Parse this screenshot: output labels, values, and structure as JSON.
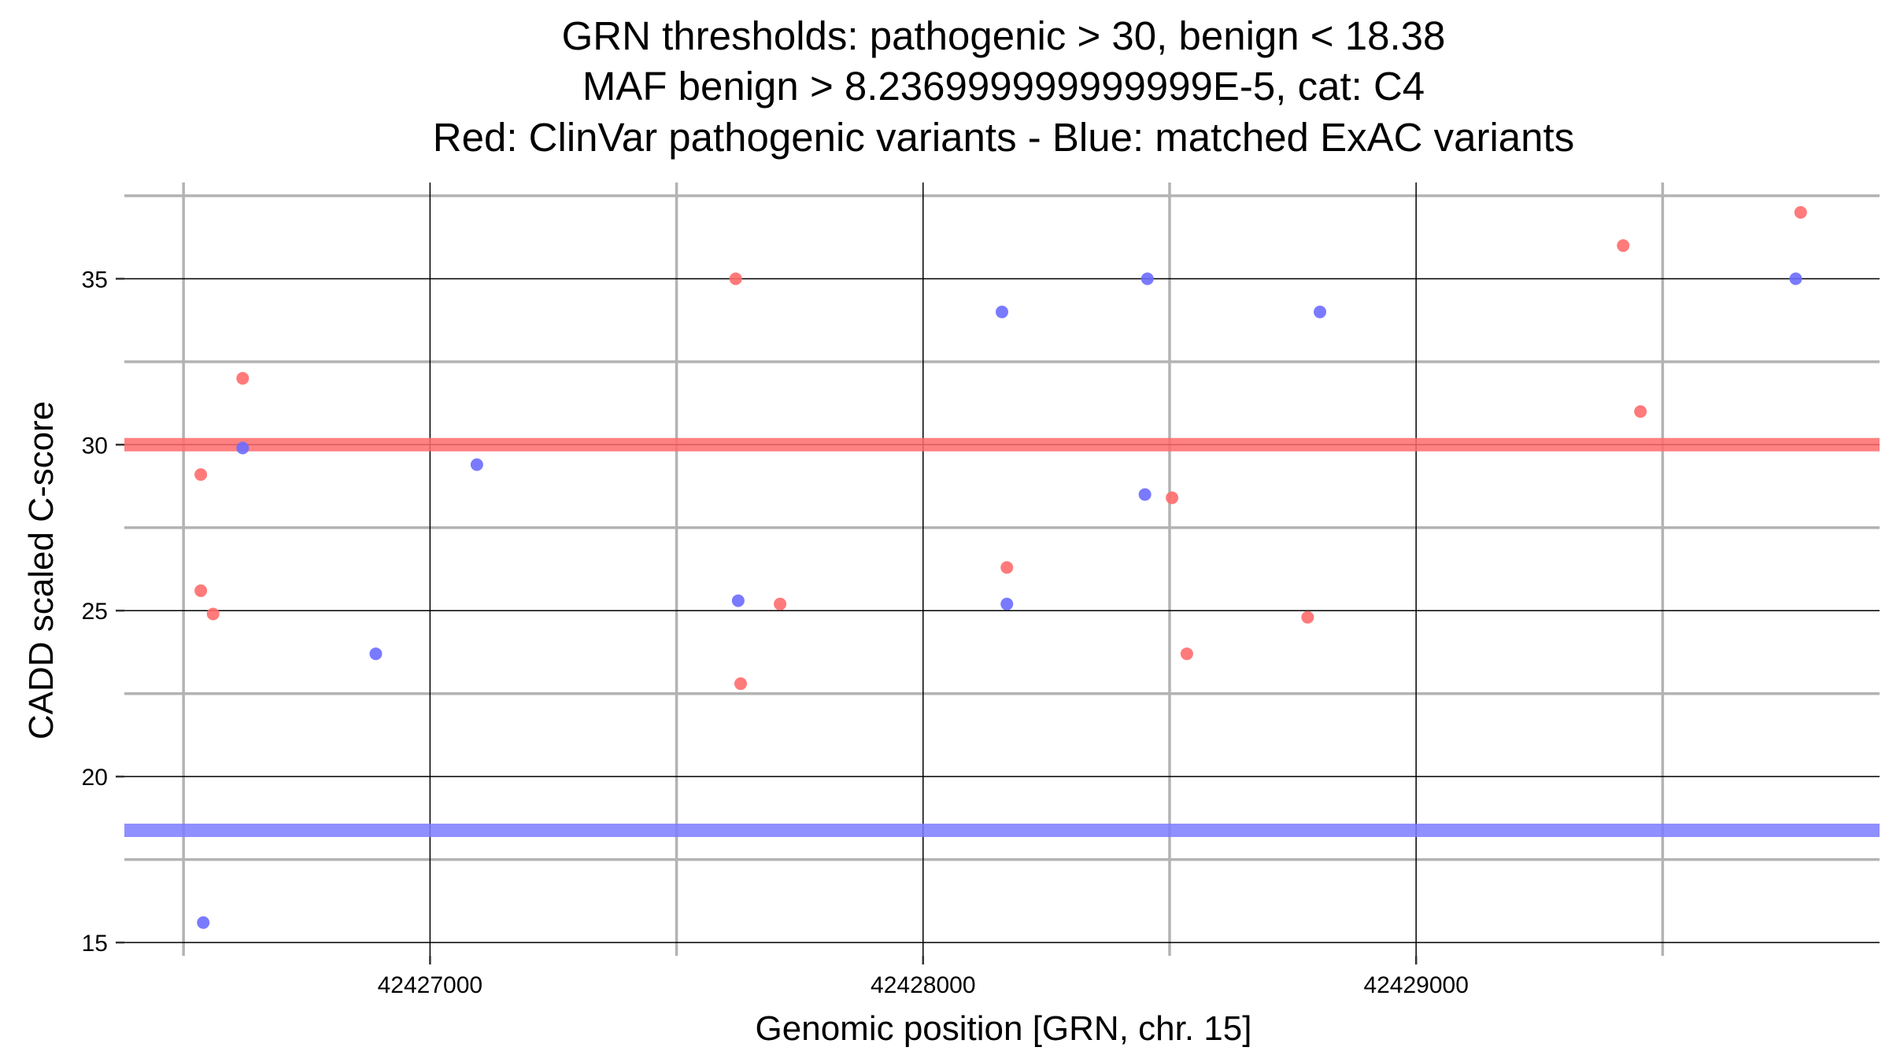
{
  "chart_data": {
    "type": "scatter",
    "title_lines": [
      "GRN thresholds: pathogenic > 30, benign < 18.38",
      "MAF benign > 8.236999999999999E-5, cat: C4",
      "Red: ClinVar pathogenic variants - Blue: matched ExAC variants"
    ],
    "xlabel": "Genomic position [GRN, chr. 15]",
    "ylabel": "CADD scaled C-score",
    "xlim": [
      42426380,
      42429940
    ],
    "ylim": [
      14.6,
      37.9
    ],
    "xticks": [
      42427000,
      42428000,
      42429000
    ],
    "xtick_labels": [
      "42427000",
      "42428000",
      "42429000"
    ],
    "x_minor_grid": [
      42426500,
      42427500,
      42428500,
      42429500
    ],
    "yticks": [
      15,
      20,
      25,
      30,
      35
    ],
    "ytick_labels": [
      "15",
      "20",
      "25",
      "30",
      "35"
    ],
    "y_minor_grid": [
      17.5,
      22.5,
      27.5,
      32.5,
      37.5
    ],
    "grid": true,
    "thresholds": [
      {
        "name": "pathogenic",
        "value": 30,
        "color": "#ff6b6b"
      },
      {
        "name": "benign",
        "value": 18.38,
        "color": "#7b7bff"
      }
    ],
    "series": [
      {
        "color": "#ff6b6b",
        "points": [
          [
            42426535,
            29.1
          ],
          [
            42426535,
            25.6
          ],
          [
            42426560,
            24.9
          ],
          [
            42426620,
            32.0
          ],
          [
            42427620,
            35.0
          ],
          [
            42427630,
            22.8
          ],
          [
            42427710,
            25.2
          ],
          [
            42428170,
            26.3
          ],
          [
            42428505,
            28.4
          ],
          [
            42428535,
            23.7
          ],
          [
            42428780,
            24.8
          ],
          [
            42429420,
            36.0
          ],
          [
            42429455,
            31.0
          ],
          [
            42429780,
            37.0
          ]
        ]
      },
      {
        "color": "#6b6bff",
        "points": [
          [
            42426540,
            15.6
          ],
          [
            42426620,
            29.9
          ],
          [
            42426890,
            23.7
          ],
          [
            42427095,
            29.4
          ],
          [
            42427625,
            25.3
          ],
          [
            42428160,
            34.0
          ],
          [
            42428170,
            25.2
          ],
          [
            42428450,
            28.5
          ],
          [
            42428455,
            35.0
          ],
          [
            42428805,
            34.0
          ],
          [
            42429770,
            35.0
          ]
        ]
      }
    ]
  }
}
